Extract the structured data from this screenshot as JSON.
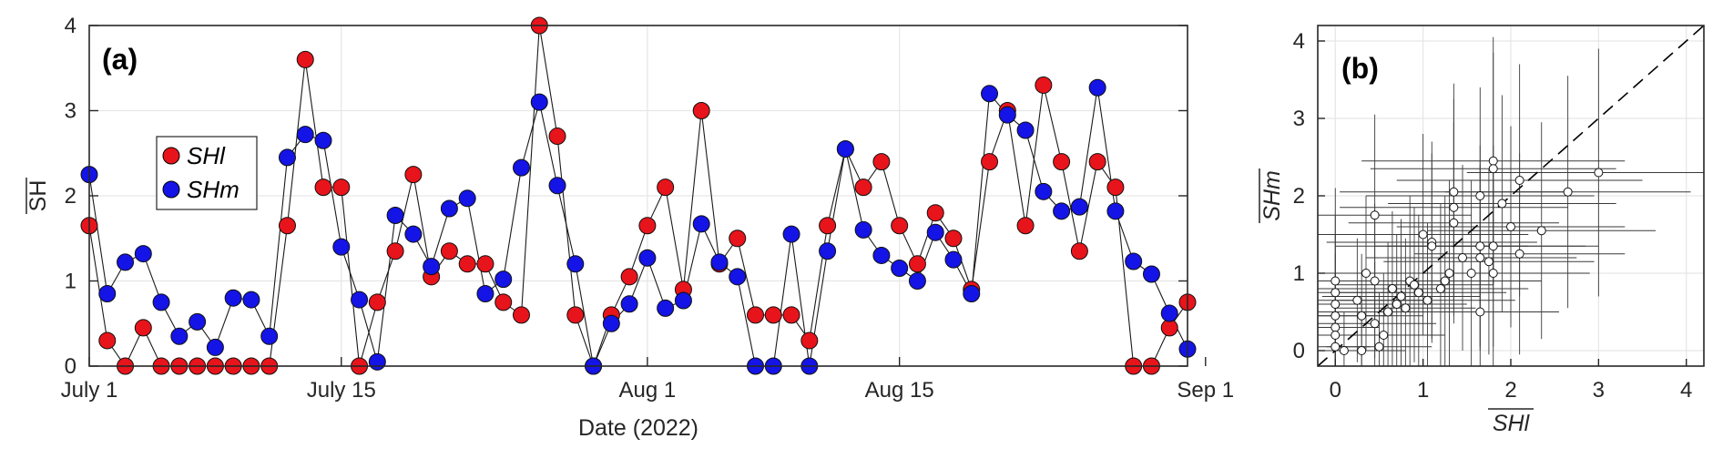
{
  "chart_data": [
    {
      "type": "line",
      "panel_label": "(a)",
      "xlabel": "Date (2022)",
      "ylabel": "SH",
      "ylim": [
        0,
        4
      ],
      "yticks": [
        0,
        1,
        2,
        3,
        4
      ],
      "xticks": [
        {
          "day": 0,
          "label": "July 1"
        },
        {
          "day": 14,
          "label": "July 15"
        },
        {
          "day": 31,
          "label": "Aug 1"
        },
        {
          "day": 45,
          "label": "Aug 15"
        },
        {
          "day": 62,
          "label": "Sep 1"
        }
      ],
      "grid": true,
      "legend_placement": "upper-left",
      "series": [
        {
          "name": "SHl",
          "color": "#e8141b",
          "values": [
            1.65,
            0.3,
            0,
            0.45,
            0,
            0,
            0,
            0,
            0,
            0,
            0,
            1.65,
            3.6,
            2.1,
            2.1,
            0,
            0.75,
            1.35,
            2.25,
            1.05,
            1.35,
            1.2,
            1.2,
            0.75,
            0.6,
            4.0,
            2.7,
            0.6,
            0,
            0.6,
            1.05,
            1.65,
            2.1,
            0.9,
            3.0,
            1.2,
            1.5,
            0.6,
            0.6,
            0.6,
            0.3,
            1.65,
            2.55,
            2.1,
            2.4,
            1.65,
            1.2,
            1.8,
            1.5,
            0.9,
            2.4,
            3.0,
            1.65,
            3.3,
            2.4,
            1.35,
            2.4,
            2.1,
            0,
            0,
            0.45,
            0.75
          ]
        },
        {
          "name": "SHm",
          "color": "#1414e6",
          "values": [
            2.25,
            0.85,
            1.22,
            1.32,
            0.75,
            0.35,
            0.52,
            0.22,
            0.8,
            0.78,
            0.35,
            2.45,
            2.72,
            2.65,
            1.4,
            0.78,
            0.05,
            1.77,
            1.55,
            1.17,
            1.85,
            1.97,
            0.85,
            1.02,
            2.33,
            3.1,
            2.12,
            1.2,
            0,
            0.5,
            0.73,
            1.27,
            0.68,
            0.77,
            1.67,
            1.22,
            1.05,
            0,
            0,
            1.55,
            0,
            1.35,
            2.55,
            1.6,
            1.3,
            1.15,
            1.0,
            1.57,
            1.25,
            0.85,
            3.2,
            2.95,
            2.77,
            2.05,
            1.82,
            1.87,
            3.27,
            1.82,
            1.23,
            1.08,
            0.62,
            0.2
          ]
        }
      ]
    },
    {
      "type": "scatter",
      "panel_label": "(b)",
      "xlabel": "SHl",
      "ylabel": "SHm",
      "xlim": [
        -0.2,
        4.2
      ],
      "ylim": [
        -0.2,
        4.2
      ],
      "xticks": [
        0,
        1,
        2,
        3,
        4
      ],
      "yticks": [
        0,
        1,
        2,
        3,
        4
      ],
      "grid": true,
      "reference_line": "y = x dashed",
      "points": [
        {
          "x": 0,
          "y": 0.9,
          "ex": 1.0,
          "ey": 1.2
        },
        {
          "x": 0,
          "y": 0.75,
          "ex": 0.8,
          "ey": 1.0
        },
        {
          "x": 0,
          "y": 0.6,
          "ex": 0.7,
          "ey": 0.9
        },
        {
          "x": 0,
          "y": 0.45,
          "ex": 0.6,
          "ey": 0.8
        },
        {
          "x": 0,
          "y": 0.3,
          "ex": 0.5,
          "ey": 0.7
        },
        {
          "x": 0,
          "y": 0.2,
          "ex": 0.5,
          "ey": 0.6
        },
        {
          "x": 0,
          "y": 0.05,
          "ex": 0.4,
          "ey": 0.5
        },
        {
          "x": 0.1,
          "y": 0,
          "ex": 0.4,
          "ey": 0.5
        },
        {
          "x": 0.25,
          "y": 0.65,
          "ex": 0.8,
          "ey": 0.8
        },
        {
          "x": 0.3,
          "y": 0,
          "ex": 0.5,
          "ey": 0.6
        },
        {
          "x": 0.3,
          "y": 0.45,
          "ex": 0.7,
          "ey": 0.8
        },
        {
          "x": 0.35,
          "y": 1.0,
          "ex": 0.9,
          "ey": 1.0
        },
        {
          "x": 0.45,
          "y": 1.75,
          "ex": 1.1,
          "ey": 1.3
        },
        {
          "x": 0.45,
          "y": 0.9,
          "ex": 0.9,
          "ey": 1.0
        },
        {
          "x": 0.45,
          "y": 0.35,
          "ex": 0.7,
          "ey": 0.8
        },
        {
          "x": 0.5,
          "y": 0.05,
          "ex": 0.6,
          "ey": 0.7
        },
        {
          "x": 0.55,
          "y": 0.2,
          "ex": 0.7,
          "ey": 0.8
        },
        {
          "x": 0.6,
          "y": 0.5,
          "ex": 0.8,
          "ey": 0.9
        },
        {
          "x": 0.65,
          "y": 0.8,
          "ex": 0.9,
          "ey": 1.0
        },
        {
          "x": 0.7,
          "y": 0.6,
          "ex": 0.8,
          "ey": 0.9
        },
        {
          "x": 0.75,
          "y": 0.7,
          "ex": 0.9,
          "ey": 1.0
        },
        {
          "x": 0.8,
          "y": 0.55,
          "ex": 0.8,
          "ey": 0.9
        },
        {
          "x": 0.85,
          "y": 0.9,
          "ex": 1.0,
          "ey": 1.1
        },
        {
          "x": 0.9,
          "y": 0.85,
          "ex": 0.9,
          "ey": 1.0
        },
        {
          "x": 0.95,
          "y": 0.75,
          "ex": 1.0,
          "ey": 1.0
        },
        {
          "x": 1.0,
          "y": 1.5,
          "ex": 1.2,
          "ey": 1.3
        },
        {
          "x": 1.05,
          "y": 0.65,
          "ex": 1.0,
          "ey": 1.0
        },
        {
          "x": 1.1,
          "y": 1.4,
          "ex": 1.2,
          "ey": 1.3
        },
        {
          "x": 1.1,
          "y": 1.35,
          "ex": 1.1,
          "ey": 1.2
        },
        {
          "x": 1.2,
          "y": 0.8,
          "ex": 1.0,
          "ey": 1.1
        },
        {
          "x": 1.25,
          "y": 0.9,
          "ex": 1.1,
          "ey": 1.1
        },
        {
          "x": 1.3,
          "y": 1.0,
          "ex": 1.1,
          "ey": 1.2
        },
        {
          "x": 1.35,
          "y": 2.05,
          "ex": 1.3,
          "ey": 1.4
        },
        {
          "x": 1.35,
          "y": 1.85,
          "ex": 1.3,
          "ey": 1.4
        },
        {
          "x": 1.35,
          "y": 1.65,
          "ex": 1.2,
          "ey": 1.3
        },
        {
          "x": 1.45,
          "y": 1.2,
          "ex": 1.1,
          "ey": 1.2
        },
        {
          "x": 1.55,
          "y": 1.0,
          "ex": 1.1,
          "ey": 1.2
        },
        {
          "x": 1.65,
          "y": 2.0,
          "ex": 1.3,
          "ey": 1.4
        },
        {
          "x": 1.65,
          "y": 1.35,
          "ex": 1.2,
          "ey": 1.3
        },
        {
          "x": 1.65,
          "y": 1.2,
          "ex": 1.1,
          "ey": 1.2
        },
        {
          "x": 1.65,
          "y": 0.5,
          "ex": 0.9,
          "ey": 1.0
        },
        {
          "x": 1.75,
          "y": 1.15,
          "ex": 1.2,
          "ey": 1.2
        },
        {
          "x": 1.8,
          "y": 2.45,
          "ex": 1.5,
          "ey": 1.6
        },
        {
          "x": 1.8,
          "y": 2.35,
          "ex": 1.4,
          "ey": 1.5
        },
        {
          "x": 1.8,
          "y": 1.35,
          "ex": 1.2,
          "ey": 1.3
        },
        {
          "x": 1.8,
          "y": 1.0,
          "ex": 1.1,
          "ey": 1.2
        },
        {
          "x": 1.9,
          "y": 1.9,
          "ex": 1.3,
          "ey": 1.4
        },
        {
          "x": 2.0,
          "y": 1.6,
          "ex": 1.3,
          "ey": 1.3
        },
        {
          "x": 2.1,
          "y": 1.25,
          "ex": 1.2,
          "ey": 1.3
        },
        {
          "x": 2.1,
          "y": 2.2,
          "ex": 1.4,
          "ey": 1.5
        },
        {
          "x": 2.35,
          "y": 1.55,
          "ex": 1.3,
          "ey": 1.4
        },
        {
          "x": 2.65,
          "y": 2.05,
          "ex": 1.4,
          "ey": 1.5
        },
        {
          "x": 3.0,
          "y": 2.3,
          "ex": 1.5,
          "ey": 1.6
        }
      ]
    }
  ]
}
